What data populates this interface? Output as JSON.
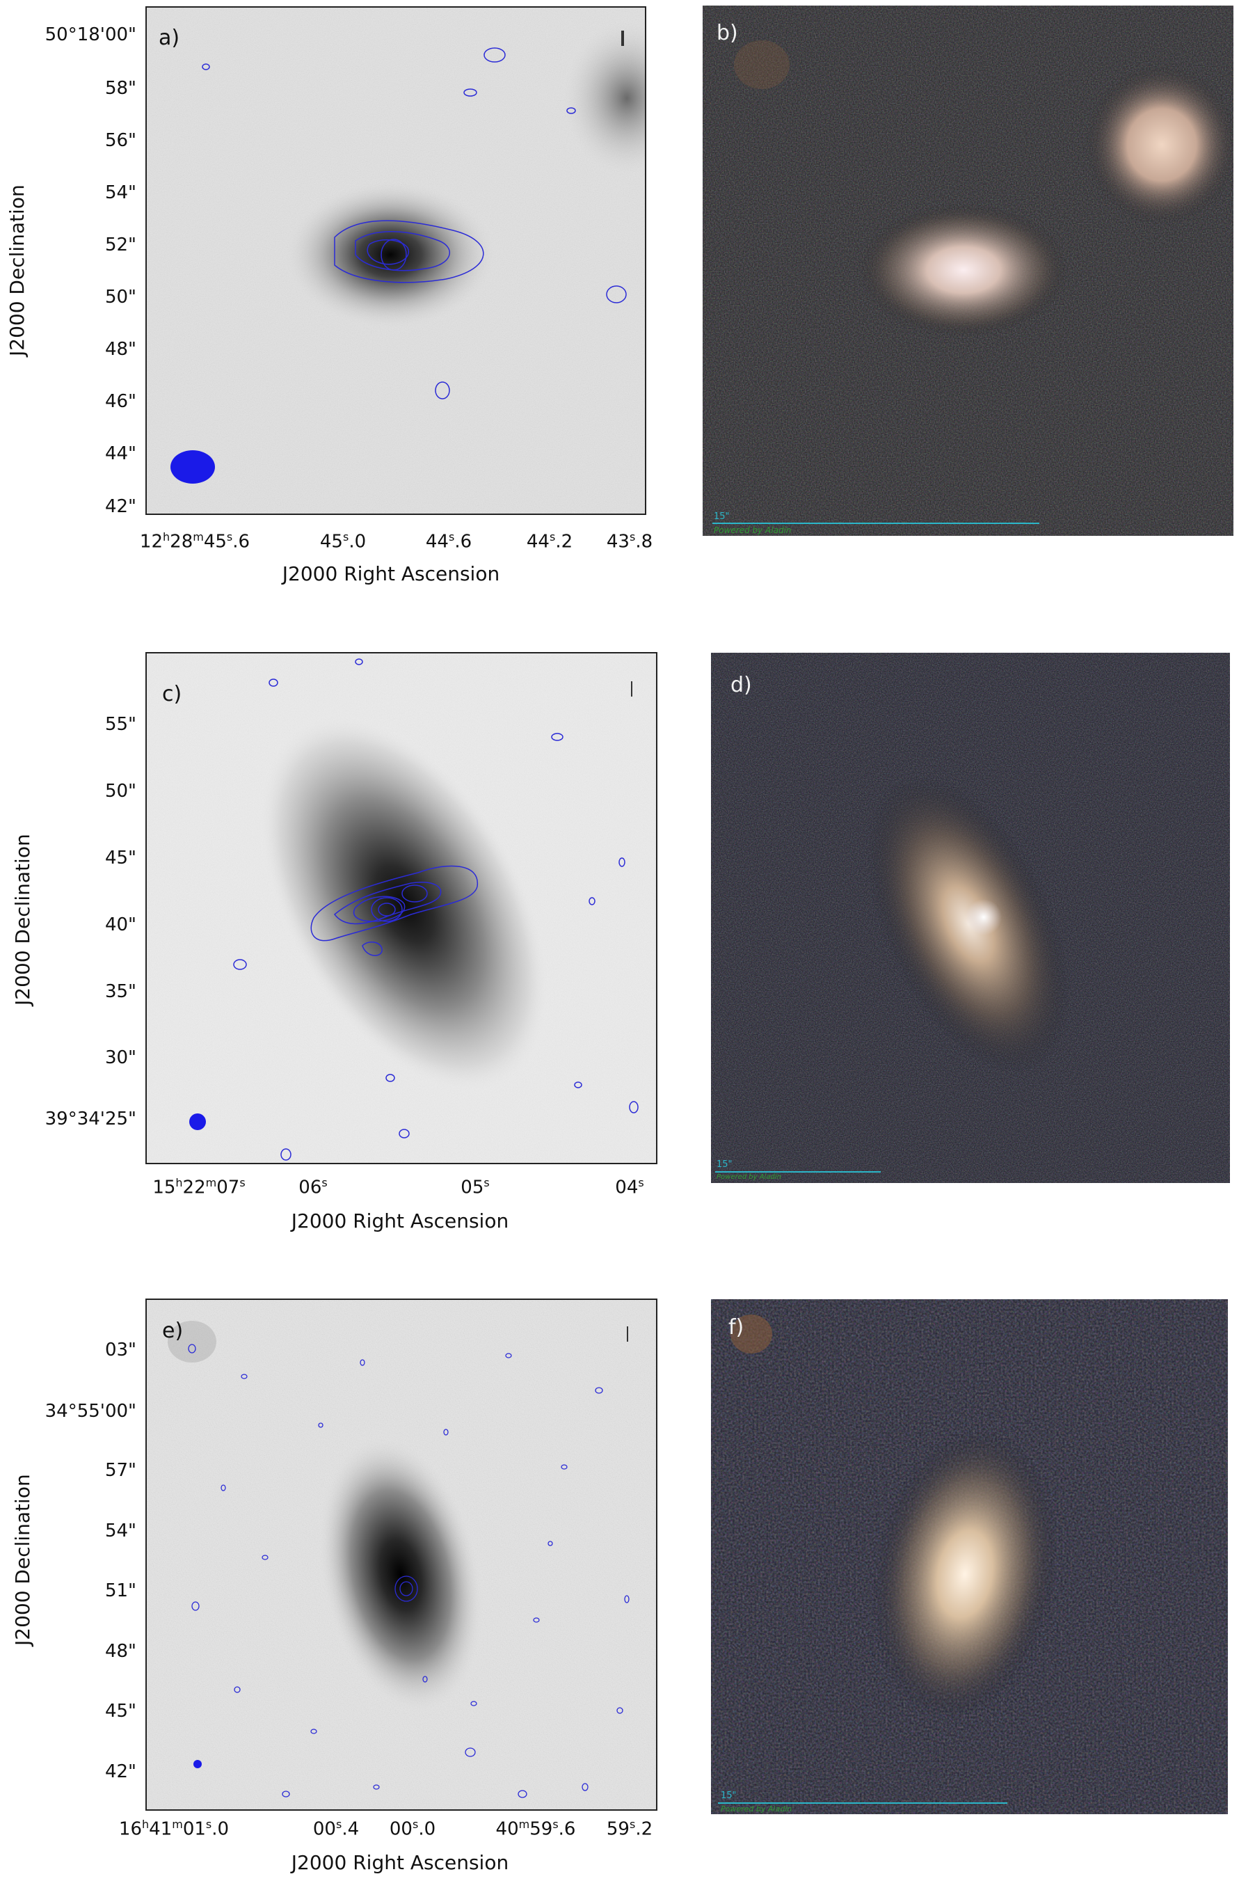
{
  "panels": {
    "a": {
      "label": "a)",
      "y_ticks": [
        "50°18'00\"",
        "58\"",
        "56\"",
        "54\"",
        "52\"",
        "50\"",
        "48\"",
        "46\"",
        "44\"",
        "42\""
      ],
      "x_ticks": [
        "12h28m45s.6",
        "45s.0",
        "44s.6",
        "44s.2",
        "43s.8"
      ],
      "x_ticks_display": [
        {
          "main": "12",
          "p1": "h",
          "m2": "28",
          "p2": "m",
          "m3": "45",
          "p3": "s",
          "tail": ".6"
        },
        {
          "main": "45",
          "p3": "s",
          "tail": ".0"
        },
        {
          "main": "44",
          "p3": "s",
          "tail": ".6"
        },
        {
          "main": "44",
          "p3": "s",
          "tail": ".2"
        },
        {
          "main": "43",
          "p3": "s",
          "tail": ".8"
        }
      ],
      "ylabel": "J2000 Declination",
      "xlabel": "J2000 Right Ascension"
    },
    "b": {
      "label": "b)",
      "scale": "15\"",
      "credit": "Powered by Aladin"
    },
    "c": {
      "label": "c)",
      "y_ticks": [
        "55\"",
        "50\"",
        "45\"",
        "40\"",
        "35\"",
        "30\"",
        "39°34'25\""
      ],
      "x_ticks": [
        "15h22m07s",
        "06s",
        "05s",
        "04s"
      ],
      "ylabel": "J2000 Declination",
      "xlabel": "J2000 Right Ascension"
    },
    "d": {
      "label": "d)",
      "scale": "15\"",
      "credit": "Powered by Aladin"
    },
    "e": {
      "label": "e)",
      "y_ticks": [
        "03\"",
        "34°55'00\"",
        "57\"",
        "54\"",
        "51\"",
        "48\"",
        "45\"",
        "42\""
      ],
      "x_ticks": [
        "16h41m01s.0",
        "00s.4",
        "00s.0",
        "40m59s.6",
        "59s.2"
      ],
      "ylabel": "J2000 Declination",
      "xlabel": "J2000 Right Ascension"
    },
    "f": {
      "label": "f)",
      "scale": "15\"",
      "credit": "Powered by Aladin"
    }
  },
  "colors": {
    "contour": "#2b2bd6",
    "beam": "#1a1ae8",
    "scalebar": "#2bb6c8",
    "credit": "#2f9a34"
  }
}
